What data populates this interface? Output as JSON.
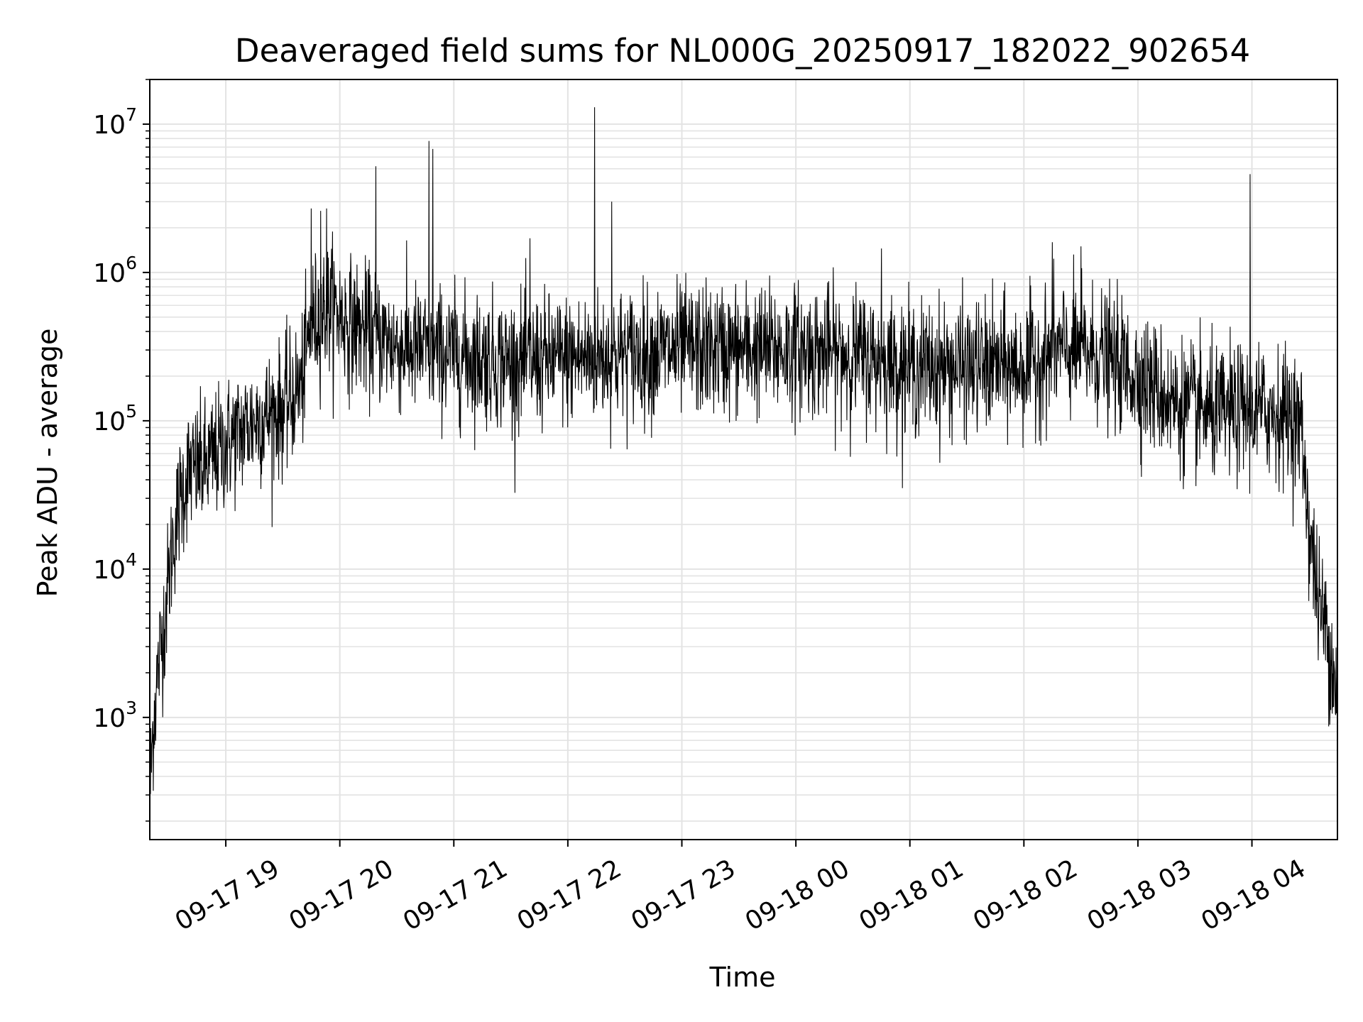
{
  "chart_data": {
    "type": "line",
    "title": "Deaveraged field sums for NL000G_20250917_182022_902654",
    "xlabel": "Time",
    "ylabel": "Peak ADU - average",
    "yscale": "log",
    "grid": true,
    "xlim": [
      "09-17 18:20",
      "09-18 04:45"
    ],
    "ylim": [
      150,
      20000000
    ],
    "x_ticks": [
      "09-17 19",
      "09-17 20",
      "09-17 21",
      "09-17 22",
      "09-17 23",
      "09-18 00",
      "09-18 01",
      "09-18 02",
      "09-18 03",
      "09-18 04"
    ],
    "y_ticks": [
      {
        "base": "10",
        "exp": "3",
        "value": 1000
      },
      {
        "base": "10",
        "exp": "4",
        "value": 10000
      },
      {
        "base": "10",
        "exp": "5",
        "value": 100000
      },
      {
        "base": "10",
        "exp": "6",
        "value": 1000000
      },
      {
        "base": "10",
        "exp": "7",
        "value": 10000000
      }
    ],
    "series": [
      {
        "color": "#000000",
        "envelope": [
          {
            "t": "09-17 18:20",
            "v": 300
          },
          {
            "t": "09-17 18:22",
            "v": 1000
          },
          {
            "t": "09-17 18:25",
            "v": 2500
          },
          {
            "t": "09-17 18:28",
            "v": 5000
          },
          {
            "t": "09-17 18:32",
            "v": 15000
          },
          {
            "t": "09-17 18:36",
            "v": 30000
          },
          {
            "t": "09-17 18:40",
            "v": 45000
          },
          {
            "t": "09-17 18:50",
            "v": 50000
          },
          {
            "t": "09-17 19:00",
            "v": 70000
          },
          {
            "t": "09-17 19:15",
            "v": 100000
          },
          {
            "t": "09-17 19:30",
            "v": 120000
          },
          {
            "t": "09-17 19:40",
            "v": 180000
          },
          {
            "t": "09-17 19:45",
            "v": 450000
          },
          {
            "t": "09-17 19:55",
            "v": 600000
          },
          {
            "t": "09-17 20:05",
            "v": 450000
          },
          {
            "t": "09-17 20:30",
            "v": 320000
          },
          {
            "t": "09-17 21:00",
            "v": 280000
          },
          {
            "t": "09-17 21:30",
            "v": 250000
          },
          {
            "t": "09-17 22:00",
            "v": 260000
          },
          {
            "t": "09-17 22:30",
            "v": 280000
          },
          {
            "t": "09-17 23:00",
            "v": 300000
          },
          {
            "t": "09-17 23:30",
            "v": 300000
          },
          {
            "t": "09-18 00:00",
            "v": 300000
          },
          {
            "t": "09-18 00:30",
            "v": 280000
          },
          {
            "t": "09-18 01:00",
            "v": 230000
          },
          {
            "t": "09-18 01:30",
            "v": 230000
          },
          {
            "t": "09-18 02:00",
            "v": 230000
          },
          {
            "t": "09-18 02:20",
            "v": 300000
          },
          {
            "t": "09-18 02:40",
            "v": 280000
          },
          {
            "t": "09-18 03:00",
            "v": 200000
          },
          {
            "t": "09-18 03:20",
            "v": 130000
          },
          {
            "t": "09-18 03:40",
            "v": 110000
          },
          {
            "t": "09-18 04:00",
            "v": 120000
          },
          {
            "t": "09-18 04:20",
            "v": 110000
          },
          {
            "t": "09-18 04:26",
            "v": 90000
          },
          {
            "t": "09-18 04:30",
            "v": 20000
          },
          {
            "t": "09-18 04:35",
            "v": 6000
          },
          {
            "t": "09-18 04:40",
            "v": 3500
          },
          {
            "t": "09-18 04:45",
            "v": 1500
          }
        ],
        "spikes": [
          {
            "t": "09-17 19:45",
            "v": 2700000
          },
          {
            "t": "09-17 19:50",
            "v": 2600000
          },
          {
            "t": "09-17 19:53",
            "v": 2700000
          },
          {
            "t": "09-17 20:19",
            "v": 5200000
          },
          {
            "t": "09-17 20:47",
            "v": 7700000
          },
          {
            "t": "09-17 20:49",
            "v": 6800000
          },
          {
            "t": "09-17 21:40",
            "v": 1700000
          },
          {
            "t": "09-17 22:14",
            "v": 13000000
          },
          {
            "t": "09-17 22:23",
            "v": 3000000
          },
          {
            "t": "09-18 00:45",
            "v": 1450000
          },
          {
            "t": "09-18 02:15",
            "v": 1600000
          },
          {
            "t": "09-18 02:30",
            "v": 1500000
          },
          {
            "t": "09-18 03:59",
            "v": 4600000
          }
        ]
      }
    ]
  }
}
